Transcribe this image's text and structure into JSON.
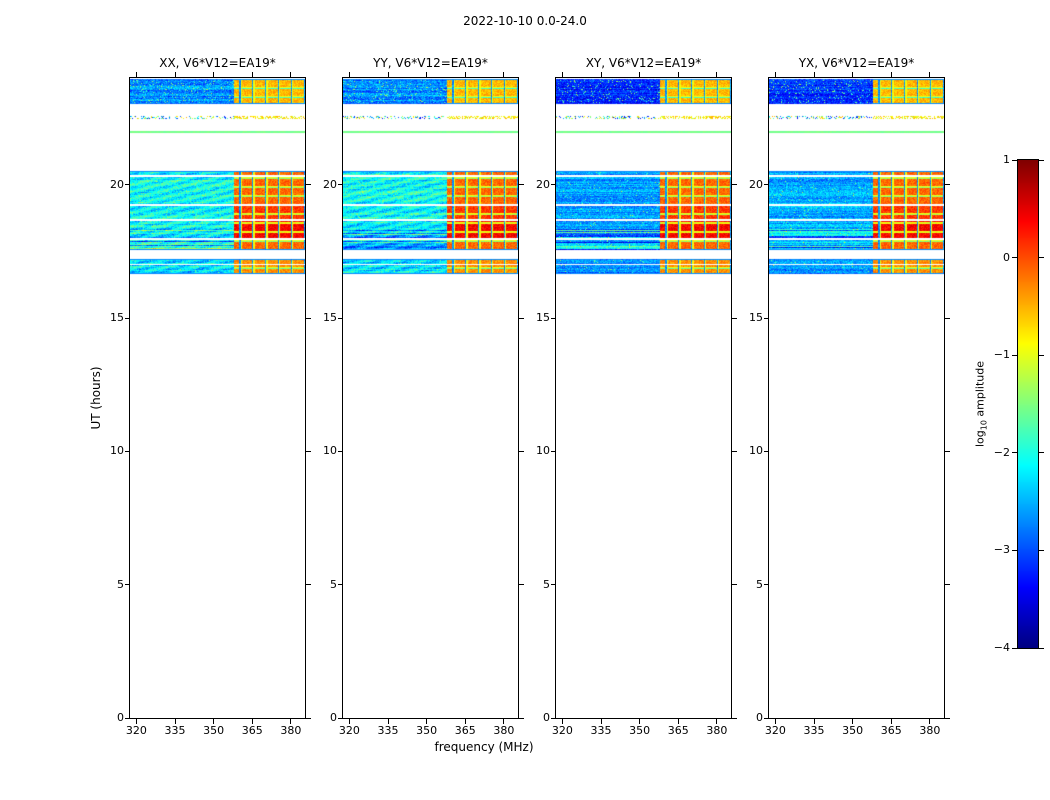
{
  "chart_data": {
    "type": "heatmap",
    "title": "2022-10-10 0.0-24.0",
    "colormap": "jet",
    "panels": [
      {
        "code": "XX",
        "title": "XX, V6*V12=EA19*",
        "noise_level": -2.1
      },
      {
        "code": "YY",
        "title": "YY, V6*V12=EA19*",
        "noise_level": -2.1
      },
      {
        "code": "XY",
        "title": "XY, V6*V12=EA19*",
        "noise_level": -2.6
      },
      {
        "code": "YX",
        "title": "YX, V6*V12=EA19*",
        "noise_level": -2.55
      }
    ],
    "x_axis": {
      "label": "frequency (MHz)",
      "range": [
        317.5,
        385.5
      ],
      "ticks": [
        320,
        335,
        350,
        365,
        380
      ]
    },
    "y_axis": {
      "label": "UT (hours)",
      "range": [
        0,
        24
      ],
      "ticks": [
        0,
        5,
        10,
        15,
        20
      ]
    },
    "colorbar": {
      "label": "log10 amplitude",
      "label_pre": "log",
      "label_sub": "10",
      "label_post": " amplitude",
      "range": [
        -4,
        1
      ],
      "ticks": [
        1,
        0,
        -1,
        -2,
        -3,
        -4
      ]
    },
    "bright_band_mhz": [
      358,
      385.5
    ],
    "bright_grid_mhz": 5,
    "time_bands": [
      {
        "ut": [
          23.02,
          23.95
        ],
        "kind": "noise",
        "level_offset": -0.6,
        "jitter": 0.5,
        "speckle": 0.06,
        "bright": true,
        "bright_level": -0.75
      },
      {
        "ut": [
          22.47,
          22.56
        ],
        "kind": "sparse",
        "density": 0.3
      },
      {
        "ut": [
          21.92,
          22.03
        ],
        "kind": "solid",
        "level": -1.55
      },
      {
        "ut": [
          17.55,
          20.5
        ],
        "kind": "noise",
        "level_offset": 0,
        "jitter": 0.45,
        "speckle": 0.02,
        "wavy": true,
        "bright": true,
        "bright_level": -0.35,
        "gaps": [
          [
            20.3,
            20.38
          ],
          [
            19.2,
            19.28
          ],
          [
            18.62,
            18.72
          ],
          [
            17.93,
            17.99
          ]
        ],
        "stripe_zone": [
          17.55,
          18.35
        ],
        "hot_rows": [
          [
            17.99,
            18.62,
            0.5
          ],
          [
            18.72,
            19.2,
            0.22
          ]
        ]
      },
      {
        "ut": [
          16.65,
          17.22
        ],
        "kind": "noise",
        "level_offset": -0.15,
        "jitter": 0.45,
        "speckle": 0.02,
        "wavy": true,
        "bright": true,
        "bright_level": -0.55,
        "gaps": [
          [
            16.97,
            17.03
          ]
        ]
      }
    ]
  }
}
